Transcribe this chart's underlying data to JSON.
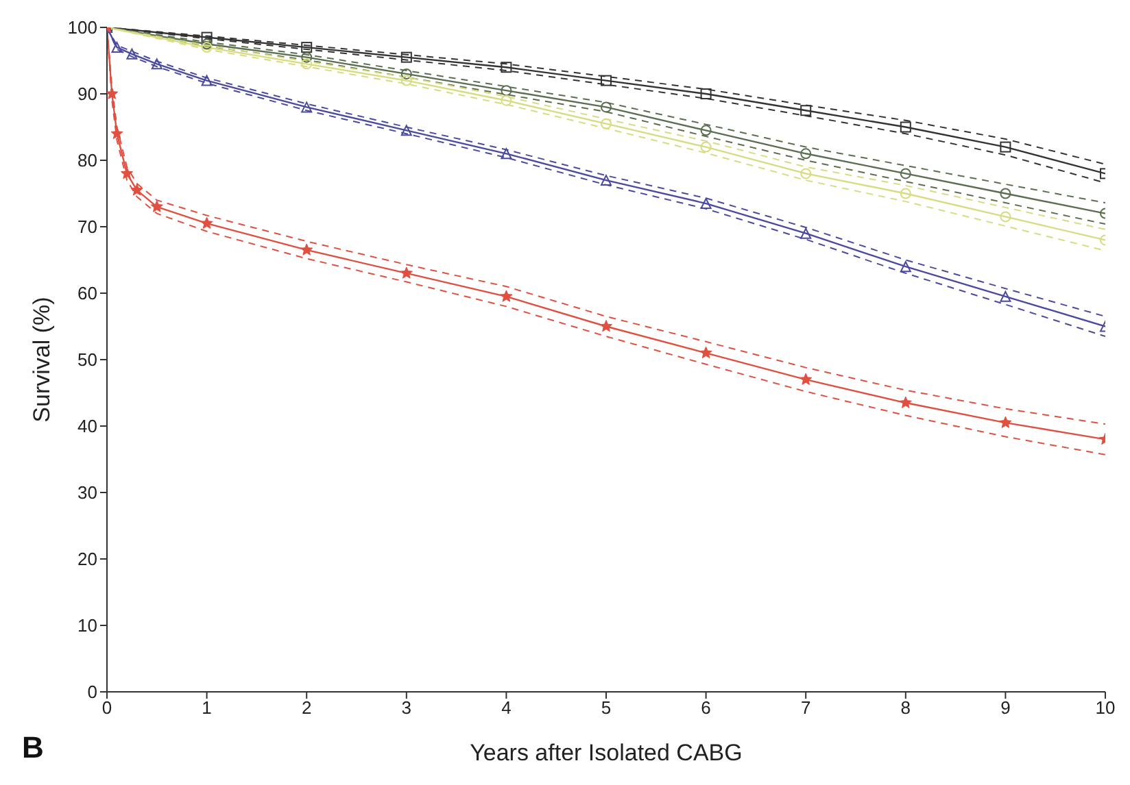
{
  "chart_data": {
    "type": "line",
    "xlabel": "Years after Isolated CABG",
    "ylabel": "Survival (%)",
    "annotations": [
      "B"
    ],
    "xlim": [
      0,
      10
    ],
    "xticks": [
      0,
      1,
      2,
      3,
      4,
      5,
      6,
      7,
      8,
      9,
      10
    ],
    "ylim": [
      0,
      100
    ],
    "yticks": [
      0,
      10,
      20,
      30,
      40,
      50,
      60,
      70,
      80,
      90,
      100
    ],
    "grid": false,
    "legend": false,
    "series": [
      {
        "color": "#333333",
        "marker": "square",
        "line_style": "solid",
        "x": [
          0,
          1,
          2,
          3,
          4,
          5,
          6,
          7,
          8,
          9,
          10
        ],
        "values": [
          100,
          98.5,
          97,
          95.5,
          94,
          92,
          90,
          87.5,
          85,
          82,
          78
        ]
      },
      {
        "color": "#333333",
        "marker": "none",
        "line_style": "dashed",
        "x": [
          0,
          1,
          2,
          3,
          4,
          5,
          6,
          7,
          8,
          9,
          10
        ],
        "values": [
          100,
          98.3,
          96.7,
          95.1,
          93.5,
          91.4,
          89.3,
          86.7,
          84,
          80.8,
          76.6
        ]
      },
      {
        "color": "#333333",
        "marker": "none",
        "line_style": "dashed",
        "x": [
          0,
          1,
          2,
          3,
          4,
          5,
          6,
          7,
          8,
          9,
          10
        ],
        "values": [
          100,
          98.7,
          97.3,
          95.9,
          94.5,
          92.6,
          90.7,
          88.3,
          86,
          83.2,
          79.4
        ]
      },
      {
        "color": "#5a6e50",
        "marker": "circle",
        "line_style": "solid",
        "x": [
          0,
          1,
          2,
          3,
          4,
          5,
          6,
          7,
          8,
          9,
          10
        ],
        "values": [
          100,
          97.5,
          95.5,
          93,
          90.5,
          88,
          84.5,
          81,
          78,
          75,
          72
        ]
      },
      {
        "color": "#5a6e50",
        "marker": "none",
        "line_style": "dashed",
        "x": [
          0,
          1,
          2,
          3,
          4,
          5,
          6,
          7,
          8,
          9,
          10
        ],
        "values": [
          100,
          97.2,
          95.1,
          92.5,
          89.9,
          87.3,
          83.6,
          80,
          76.8,
          73.6,
          70.4
        ]
      },
      {
        "color": "#5a6e50",
        "marker": "none",
        "line_style": "dashed",
        "x": [
          0,
          1,
          2,
          3,
          4,
          5,
          6,
          7,
          8,
          9,
          10
        ],
        "values": [
          100,
          97.8,
          95.9,
          93.5,
          91.1,
          88.7,
          85.4,
          82,
          79.2,
          76.4,
          73.6
        ]
      },
      {
        "color": "#d8dc80",
        "marker": "circle",
        "line_style": "solid",
        "x": [
          0,
          1,
          2,
          3,
          4,
          5,
          6,
          7,
          8,
          9,
          10
        ],
        "values": [
          100,
          97,
          94.5,
          92,
          89,
          85.5,
          82,
          78,
          75,
          71.5,
          68
        ]
      },
      {
        "color": "#d8dc80",
        "marker": "none",
        "line_style": "dashed",
        "x": [
          0,
          1,
          2,
          3,
          4,
          5,
          6,
          7,
          8,
          9,
          10
        ],
        "values": [
          100,
          96.7,
          94.1,
          91.5,
          88.4,
          84.8,
          81.1,
          77,
          73.8,
          70.1,
          66.4
        ]
      },
      {
        "color": "#d8dc80",
        "marker": "none",
        "line_style": "dashed",
        "x": [
          0,
          1,
          2,
          3,
          4,
          5,
          6,
          7,
          8,
          9,
          10
        ],
        "values": [
          100,
          97.3,
          94.9,
          92.5,
          89.6,
          86.2,
          82.9,
          79,
          76.2,
          72.9,
          69.6
        ]
      },
      {
        "color": "#4a4aa0",
        "marker": "triangle",
        "line_style": "solid",
        "x": [
          0,
          0.1,
          0.25,
          0.5,
          1,
          2,
          3,
          4,
          5,
          6,
          7,
          8,
          9,
          10
        ],
        "values": [
          100,
          97,
          96,
          94.5,
          92,
          88,
          84.5,
          81,
          77,
          73.5,
          69,
          64,
          59.5,
          55
        ]
      },
      {
        "color": "#4a4aa0",
        "marker": "none",
        "line_style": "dashed",
        "x": [
          0,
          0.1,
          0.25,
          0.5,
          1,
          2,
          3,
          4,
          5,
          6,
          7,
          8,
          9,
          10
        ],
        "values": [
          100,
          96.7,
          95.6,
          94.1,
          91.6,
          87.5,
          84,
          80.4,
          76.3,
          72.7,
          68.1,
          63,
          58.3,
          53.5
        ]
      },
      {
        "color": "#4a4aa0",
        "marker": "none",
        "line_style": "dashed",
        "x": [
          0,
          0.1,
          0.25,
          0.5,
          1,
          2,
          3,
          4,
          5,
          6,
          7,
          8,
          9,
          10
        ],
        "values": [
          100,
          97.3,
          96.4,
          94.9,
          92.4,
          88.5,
          85,
          81.6,
          77.7,
          74.3,
          69.9,
          65,
          60.7,
          56.5
        ]
      },
      {
        "color": "#e05040",
        "marker": "star",
        "line_style": "solid",
        "x": [
          0,
          0.05,
          0.1,
          0.2,
          0.3,
          0.5,
          1,
          2,
          3,
          4,
          5,
          6,
          7,
          8,
          9,
          10
        ],
        "values": [
          100,
          90,
          84,
          78,
          75.5,
          73,
          70.5,
          66.5,
          63,
          59.5,
          55,
          51,
          47,
          43.5,
          40.5,
          38
        ]
      },
      {
        "color": "#e05040",
        "marker": "none",
        "line_style": "dashed",
        "x": [
          0,
          0.05,
          0.1,
          0.2,
          0.3,
          0.5,
          1,
          2,
          3,
          4,
          5,
          6,
          7,
          8,
          9,
          10
        ],
        "values": [
          100,
          89,
          83,
          77,
          74.5,
          72,
          69.3,
          65.2,
          61.7,
          58,
          53.5,
          49.3,
          45.2,
          41.6,
          38.4,
          35.7
        ]
      },
      {
        "color": "#e05040",
        "marker": "none",
        "line_style": "dashed",
        "x": [
          0,
          0.05,
          0.1,
          0.2,
          0.3,
          0.5,
          1,
          2,
          3,
          4,
          5,
          6,
          7,
          8,
          9,
          10
        ],
        "values": [
          100,
          91,
          85,
          79,
          76.5,
          74,
          71.7,
          67.8,
          64.3,
          61,
          56.5,
          52.7,
          48.8,
          45.4,
          42.6,
          40.3
        ]
      }
    ]
  }
}
